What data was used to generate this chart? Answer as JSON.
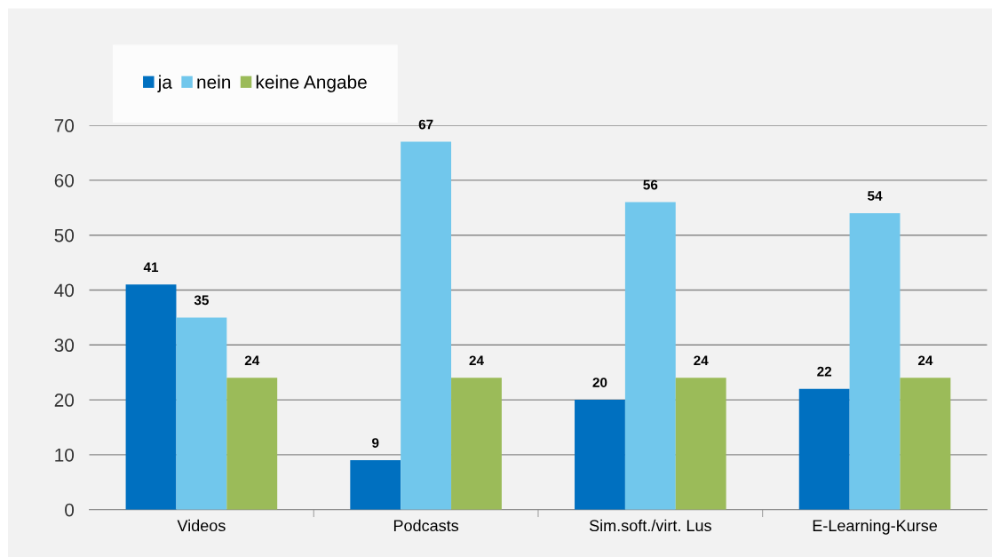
{
  "chart_data": {
    "type": "bar",
    "categories": [
      "Videos",
      "Podcasts",
      "Sim.soft./virt. Lus",
      "E-Learning-Kurse"
    ],
    "series": [
      {
        "name": "ja",
        "color": "#0070c0",
        "values": [
          41,
          9,
          20,
          22
        ]
      },
      {
        "name": "nein",
        "color": "#71c7ec",
        "values": [
          35,
          67,
          56,
          54
        ]
      },
      {
        "name": "keine Angabe",
        "color": "#9bbb59",
        "values": [
          24,
          24,
          24,
          24
        ]
      }
    ],
    "ylim": [
      0,
      70
    ],
    "yticks": [
      0,
      10,
      20,
      30,
      40,
      50,
      60,
      70
    ],
    "grid": "y",
    "legend": "top left",
    "data_labels": true
  }
}
